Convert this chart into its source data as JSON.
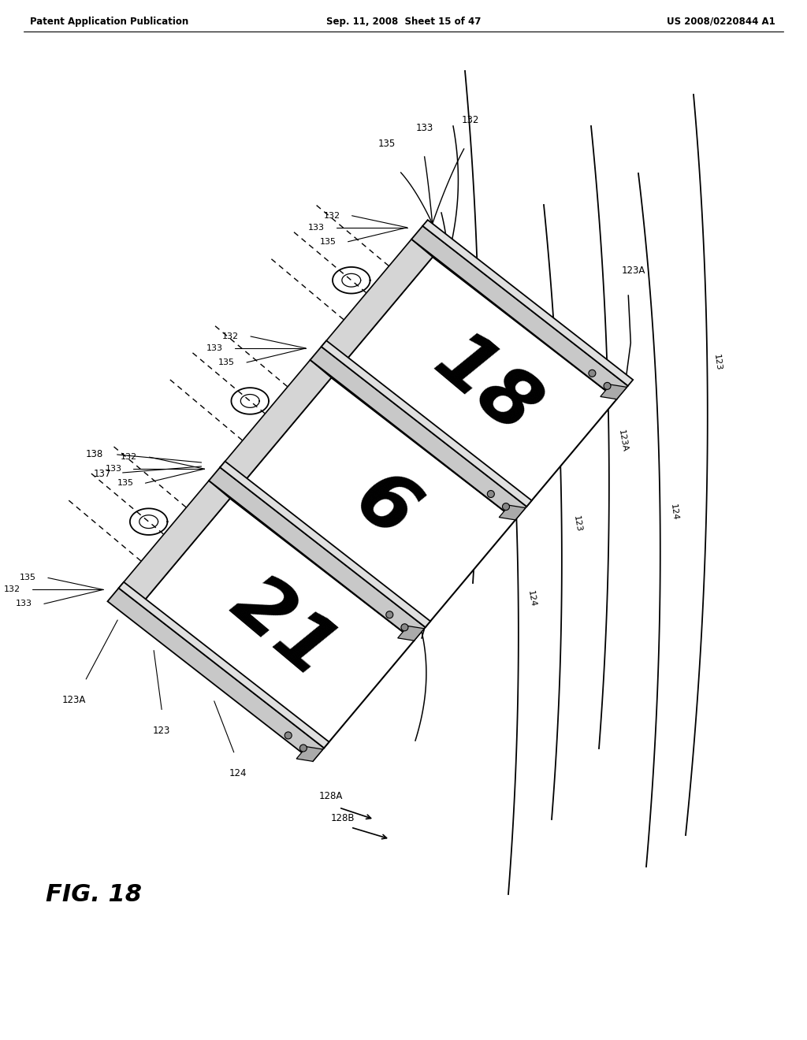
{
  "bg_color": "#ffffff",
  "header_left": "Patent Application Publication",
  "header_center": "Sep. 11, 2008  Sheet 15 of 47",
  "header_right": "US 2008/0220844 A1",
  "figure_label": "FIG. 18",
  "text_color": "#000000",
  "rotation_deg": 40,
  "numbers_on_drum": [
    "18",
    "6",
    "21"
  ],
  "right_line_labels": [
    "123A",
    "123",
    "124",
    "123A",
    "123",
    "124",
    "123A",
    "123",
    "124"
  ],
  "bottom_labels": [
    "135",
    "132",
    "133",
    "123A",
    "123",
    "124",
    "128A",
    "128B"
  ],
  "left_labels": [
    "132",
    "133",
    "135",
    "132",
    "133",
    "135",
    "132",
    "133",
    "135",
    "138",
    "137"
  ]
}
